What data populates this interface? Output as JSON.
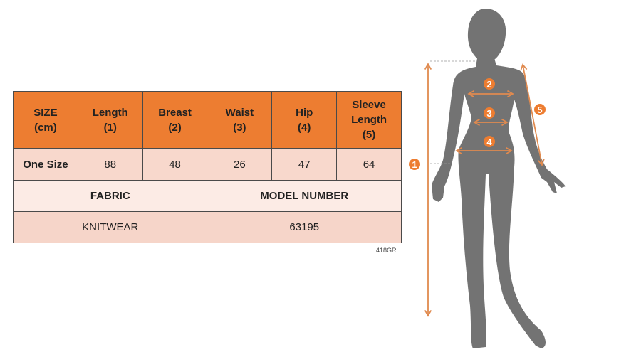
{
  "table": {
    "headers": [
      "SIZE\n(cm)",
      "Length\n(1)",
      "Breast\n(2)",
      "Waist\n(3)",
      "Hip\n(4)",
      "Sleeve\nLength\n(5)"
    ],
    "rows": [
      {
        "size": "One Size",
        "values": [
          "88",
          "48",
          "26",
          "47",
          "64"
        ]
      }
    ],
    "fabric_label": "FABRIC",
    "model_label": "MODEL NUMBER",
    "fabric_value": "KNITWEAR",
    "model_value": "63195"
  },
  "product_code": "418GR",
  "diagram": {
    "markers": [
      "1",
      "2",
      "3",
      "4",
      "5"
    ],
    "accent_color": "#ED7D31",
    "silhouette_color": "#737373"
  }
}
